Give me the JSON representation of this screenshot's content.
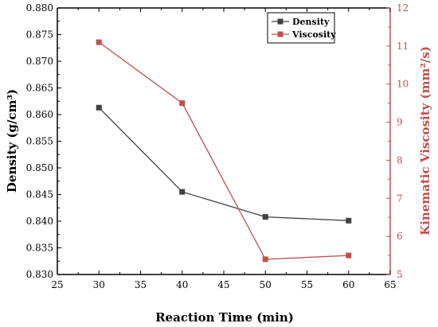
{
  "chart_data": {
    "type": "line",
    "xlabel": "Reaction Time (min)",
    "ylabel_left": "Density (g/cm³)",
    "ylabel_right": "Kinematic Viscosity (mm²/s)",
    "xlim": [
      25,
      65
    ],
    "ylim_left": [
      0.83,
      0.88
    ],
    "ylim_right": [
      5,
      12
    ],
    "x_ticks": [
      "25",
      "30",
      "35",
      "40",
      "45",
      "50",
      "55",
      "60",
      "65"
    ],
    "y_left_ticks": [
      "0.830",
      "0.835",
      "0.840",
      "0.845",
      "0.850",
      "0.855",
      "0.860",
      "0.865",
      "0.870",
      "0.875",
      "0.880"
    ],
    "y_right_ticks": [
      "5",
      "6",
      "7",
      "8",
      "9",
      "10",
      "11",
      "12"
    ],
    "legend_position": "top-right",
    "grid": false,
    "series": [
      {
        "name": "Density",
        "axis": "left",
        "color": "#404040",
        "marker": "square",
        "x": [
          30,
          40,
          50,
          60
        ],
        "y": [
          0.8613,
          0.8455,
          0.8408,
          0.8401
        ]
      },
      {
        "name": "Viscosity",
        "axis": "right",
        "color": "#c0504d",
        "marker": "square",
        "x": [
          30,
          40,
          50,
          60
        ],
        "y": [
          11.1,
          9.5,
          5.4,
          5.5
        ]
      }
    ]
  }
}
